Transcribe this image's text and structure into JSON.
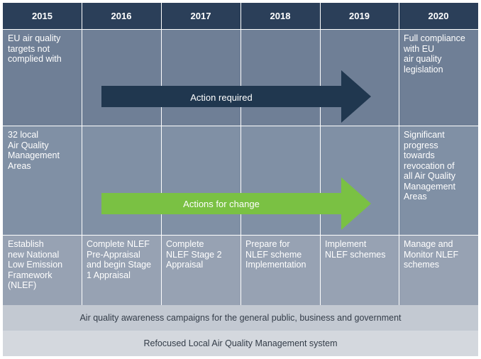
{
  "colors": {
    "header": "#2b3f59",
    "row1": "#6f7f96",
    "row2": "#8090a5",
    "row3": "#97a2b3",
    "band1": "#c3c9d2",
    "band2": "#d4d8de",
    "arrow_dark": "#20374f",
    "arrow_green": "#7ac143"
  },
  "years": [
    "2015",
    "2016",
    "2017",
    "2018",
    "2019",
    "2020"
  ],
  "row1": {
    "start": "EU air quality\ntargets not\ncomplied with",
    "end": "Full compliance\nwith EU\nair quality\nlegislation",
    "arrow_label": "Action required"
  },
  "row2": {
    "start": "32 local\nAir Quality\nManagement\nAreas",
    "end": "Significant\nprogress\ntowards\nrevocation of\nall Air Quality\nManagement\nAreas",
    "arrow_label": "Actions for change"
  },
  "row3": [
    "Establish\nnew National\nLow Emission\nFramework\n(NLEF)",
    "Complete NLEF\nPre-Appraisal\nand begin Stage\n1 Appraisal",
    "Complete\nNLEF Stage 2\nAppraisal",
    "Prepare for\nNLEF scheme\nImplementation",
    "Implement\nNLEF schemes",
    "Manage and\nMonitor NLEF\nschemes"
  ],
  "band1": "Air quality awareness campaigns for the general public, business and government",
  "band2": "Refocused Local Air Quality Management system"
}
